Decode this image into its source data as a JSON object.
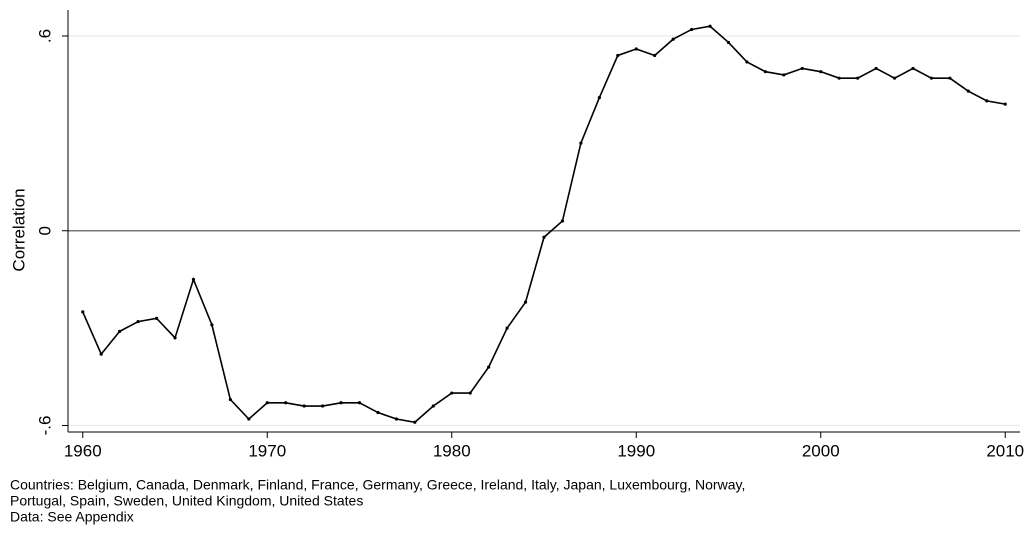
{
  "chart_data": {
    "type": "line",
    "y_label": "Correlation",
    "x": [
      1960,
      1961,
      1962,
      1963,
      1964,
      1965,
      1966,
      1967,
      1968,
      1969,
      1970,
      1971,
      1972,
      1973,
      1974,
      1975,
      1976,
      1977,
      1978,
      1979,
      1980,
      1981,
      1982,
      1983,
      1984,
      1985,
      1986,
      1987,
      1988,
      1989,
      1990,
      1991,
      1992,
      1993,
      1994,
      1995,
      1996,
      1997,
      1998,
      1999,
      2000,
      2001,
      2002,
      2003,
      2004,
      2005,
      2006,
      2007,
      2008,
      2009,
      2010
    ],
    "values": [
      -0.25,
      -0.38,
      -0.31,
      -0.28,
      -0.27,
      -0.33,
      -0.15,
      -0.29,
      -0.52,
      -0.58,
      -0.53,
      -0.53,
      -0.54,
      -0.54,
      -0.53,
      -0.53,
      -0.56,
      -0.58,
      -0.59,
      -0.54,
      -0.5,
      -0.5,
      -0.42,
      -0.3,
      -0.22,
      -0.02,
      0.03,
      0.27,
      0.41,
      0.54,
      0.56,
      0.54,
      0.59,
      0.62,
      0.63,
      0.58,
      0.52,
      0.49,
      0.48,
      0.5,
      0.49,
      0.47,
      0.47,
      0.5,
      0.47,
      0.5,
      0.47,
      0.47,
      0.43,
      0.4,
      0.39
    ],
    "color": "#000000",
    "xlim": [
      1959.2,
      2010.8
    ],
    "xticks": [
      1960,
      1970,
      1980,
      1990,
      2000,
      2010
    ],
    "ylim": [
      -0.62,
      0.68
    ],
    "yticks": [
      {
        "value": -0.6,
        "label": "-.6"
      },
      0,
      {
        "value": 0.6,
        "label": ".6"
      }
    ],
    "grid": true,
    "reference_line": 0,
    "notes": [
      "Countries: Belgium, Canada, Denmark, Finland, France, Germany, Greece, Ireland, Italy, Japan, Luxembourg, Norway,",
      "Portugal, Spain, Sweden, United Kingdom, United States",
      "Data: See Appendix"
    ]
  }
}
